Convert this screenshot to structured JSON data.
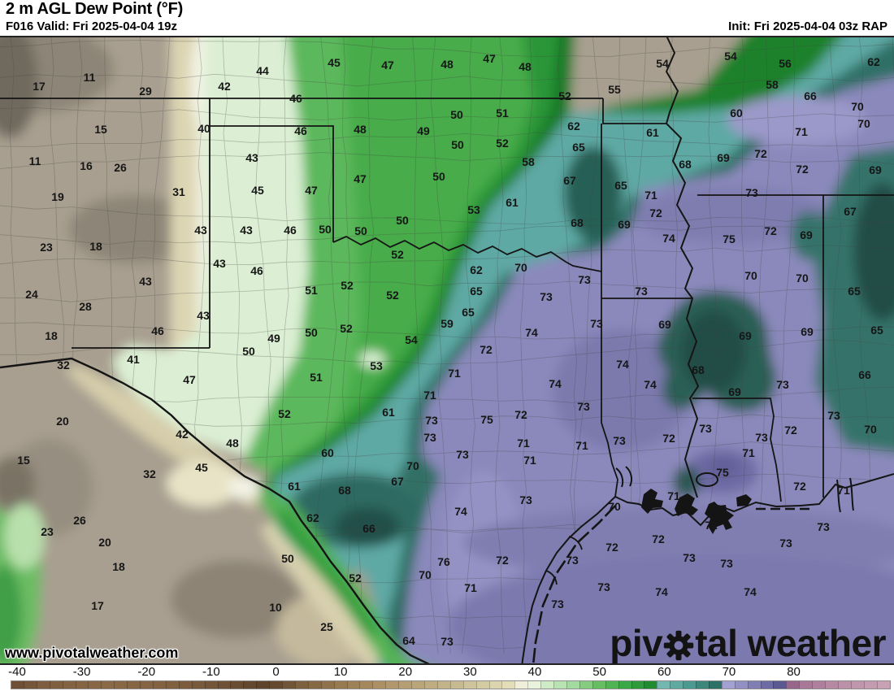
{
  "header": {
    "title": "2 m AGL Dew Point (°F)",
    "valid": "F016 Valid: Fri 2025-04-04 19z",
    "init": "Init: Fri 2025-04-04 03z RAP"
  },
  "watermark": "www.pivotalweather.com",
  "logo": {
    "pre": "piv",
    "post": "tal weather"
  },
  "colors": {
    "tan-base": "#a89f90",
    "tan-dark": "#8d8577",
    "tan-darker": "#70695d",
    "cream": "#ddd6b4",
    "white-band": "#f1f2e2",
    "green-pale": "#dcefd4",
    "green-mid": "#5cb85c",
    "green-bright": "#46ac49",
    "green-dark": "#2b9639",
    "green-deep": "#187a27",
    "teal-light": "#5ea9a4",
    "teal-mid": "#2e6f66",
    "teal-dark": "#255f55",
    "teal-deep": "#224e46",
    "purple-base": "#8b89bc",
    "purple-light": "#9b99c9",
    "purple-dark": "#7b79ad",
    "purple-deep": "#6e6ba4",
    "line-black": "#151515",
    "county-gray": "#464646",
    "label-dark": "#161616"
  },
  "colorbar": {
    "min": -41,
    "max": 95,
    "cell": 2,
    "ticks": [
      -40,
      -30,
      -20,
      -10,
      0,
      10,
      20,
      30,
      40,
      50,
      60,
      70,
      80
    ],
    "stops": [
      [
        -41,
        "#6b4c33"
      ],
      [
        -36,
        "#7e5d40"
      ],
      [
        -26,
        "#8a6947"
      ],
      [
        -16,
        "#80603f"
      ],
      [
        -8,
        "#6e5136"
      ],
      [
        -2,
        "#5e442d"
      ],
      [
        0,
        "#654a30"
      ],
      [
        4,
        "#7c6040"
      ],
      [
        10,
        "#987a50"
      ],
      [
        16,
        "#ac9064"
      ],
      [
        22,
        "#baa579"
      ],
      [
        28,
        "#c8ba90"
      ],
      [
        32,
        "#d4cba3"
      ],
      [
        36,
        "#e3ddba"
      ],
      [
        38,
        "#efeed8"
      ],
      [
        40,
        "#e9f2dc"
      ],
      [
        42,
        "#cfeac6"
      ],
      [
        46,
        "#a3daa0"
      ],
      [
        50,
        "#66bd62"
      ],
      [
        54,
        "#3aa846"
      ],
      [
        58,
        "#218b31"
      ],
      [
        60,
        "#127421"
      ],
      [
        60,
        "#73b7b0"
      ],
      [
        64,
        "#4b9a92"
      ],
      [
        68,
        "#2d7166"
      ],
      [
        70,
        "#1b524a"
      ],
      [
        70,
        "#a3a1d2"
      ],
      [
        73,
        "#8987bb"
      ],
      [
        76,
        "#6d6ba3"
      ],
      [
        79,
        "#524f8a"
      ],
      [
        80,
        "#454279"
      ],
      [
        80,
        "#97678b"
      ],
      [
        82,
        "#a87897"
      ],
      [
        88,
        "#bb91a8"
      ],
      [
        95,
        "#cba4b6"
      ]
    ]
  },
  "map_values": [
    [
      48,
      106,
      "17"
    ],
    [
      110,
      95,
      "11"
    ],
    [
      179,
      112,
      "29"
    ],
    [
      124,
      159,
      "15"
    ],
    [
      43,
      198,
      "11"
    ],
    [
      106,
      204,
      "16"
    ],
    [
      148,
      206,
      "26"
    ],
    [
      71,
      242,
      "19"
    ],
    [
      220,
      236,
      "31"
    ],
    [
      57,
      304,
      "23"
    ],
    [
      118,
      303,
      "18"
    ],
    [
      39,
      362,
      "24"
    ],
    [
      105,
      377,
      "28"
    ],
    [
      63,
      413,
      "18"
    ],
    [
      78,
      449,
      "32"
    ],
    [
      77,
      518,
      "20"
    ],
    [
      29,
      566,
      "15"
    ],
    [
      184,
      583,
      "32"
    ],
    [
      98,
      640,
      "26"
    ],
    [
      58,
      654,
      "23"
    ],
    [
      129,
      667,
      "20"
    ],
    [
      146,
      697,
      "18"
    ],
    [
      120,
      745,
      "17"
    ],
    [
      339,
      747,
      "10"
    ],
    [
      402,
      771,
      "25"
    ],
    [
      248,
      575,
      "45"
    ],
    [
      354,
      687,
      "50"
    ],
    [
      276,
      106,
      "42"
    ],
    [
      251,
      158,
      "40"
    ],
    [
      247,
      283,
      "43"
    ],
    [
      303,
      283,
      "43"
    ],
    [
      357,
      283,
      "46"
    ],
    [
      270,
      324,
      "43"
    ],
    [
      316,
      333,
      "46"
    ],
    [
      179,
      346,
      "43"
    ],
    [
      250,
      388,
      "43"
    ],
    [
      194,
      407,
      "46"
    ],
    [
      164,
      442,
      "41"
    ],
    [
      233,
      467,
      "47"
    ],
    [
      224,
      534,
      "42"
    ],
    [
      286,
      545,
      "48"
    ],
    [
      310,
      194,
      "43"
    ],
    [
      317,
      234,
      "45"
    ],
    [
      383,
      234,
      "47"
    ],
    [
      364,
      121,
      "46"
    ],
    [
      370,
      161,
      "46"
    ],
    [
      323,
      87,
      "44"
    ],
    [
      411,
      77,
      "45"
    ],
    [
      477,
      80,
      "47"
    ],
    [
      550,
      79,
      "48"
    ],
    [
      602,
      72,
      "47"
    ],
    [
      646,
      82,
      "48"
    ],
    [
      443,
      159,
      "48"
    ],
    [
      521,
      161,
      "49"
    ],
    [
      562,
      141,
      "50"
    ],
    [
      618,
      139,
      "51"
    ],
    [
      563,
      178,
      "50"
    ],
    [
      618,
      176,
      "52"
    ],
    [
      650,
      199,
      "58"
    ],
    [
      443,
      220,
      "47"
    ],
    [
      540,
      217,
      "50"
    ],
    [
      583,
      258,
      "53"
    ],
    [
      495,
      271,
      "50"
    ],
    [
      400,
      282,
      "50"
    ],
    [
      444,
      284,
      "50"
    ],
    [
      630,
      249,
      "61"
    ],
    [
      337,
      416,
      "49"
    ],
    [
      306,
      432,
      "50"
    ],
    [
      489,
      313,
      "52"
    ],
    [
      383,
      357,
      "51"
    ],
    [
      427,
      351,
      "52"
    ],
    [
      483,
      363,
      "52"
    ],
    [
      383,
      409,
      "50"
    ],
    [
      426,
      404,
      "52"
    ],
    [
      506,
      418,
      "54"
    ],
    [
      463,
      450,
      "53"
    ],
    [
      389,
      464,
      "51"
    ],
    [
      350,
      509,
      "52"
    ],
    [
      478,
      507,
      "61"
    ],
    [
      403,
      557,
      "60"
    ],
    [
      437,
      711,
      "52"
    ],
    [
      503,
      788,
      "64"
    ],
    [
      695,
      118,
      "52"
    ],
    [
      756,
      110,
      "55"
    ],
    [
      815,
      78,
      "54"
    ],
    [
      899,
      69,
      "54"
    ],
    [
      966,
      78,
      "56"
    ],
    [
      950,
      104,
      "58"
    ],
    [
      906,
      139,
      "60"
    ],
    [
      1075,
      76,
      "62"
    ],
    [
      706,
      155,
      "62"
    ],
    [
      803,
      163,
      "61"
    ],
    [
      712,
      181,
      "65"
    ],
    [
      701,
      222,
      "67"
    ],
    [
      764,
      228,
      "65"
    ],
    [
      710,
      274,
      "68"
    ],
    [
      768,
      276,
      "69"
    ],
    [
      843,
      202,
      "68"
    ],
    [
      890,
      194,
      "69"
    ],
    [
      997,
      118,
      "66"
    ],
    [
      1046,
      260,
      "67"
    ],
    [
      586,
      332,
      "62"
    ],
    [
      586,
      358,
      "65"
    ],
    [
      576,
      384,
      "65"
    ],
    [
      550,
      398,
      "59"
    ],
    [
      362,
      598,
      "61"
    ],
    [
      385,
      637,
      "62"
    ],
    [
      424,
      603,
      "68"
    ],
    [
      489,
      592,
      "67"
    ],
    [
      454,
      650,
      "66"
    ],
    [
      508,
      573,
      "70"
    ],
    [
      523,
      707,
      "70"
    ],
    [
      1055,
      131,
      "70"
    ],
    [
      1063,
      152,
      "70"
    ],
    [
      986,
      162,
      "71"
    ],
    [
      936,
      189,
      "72"
    ],
    [
      987,
      208,
      "72"
    ],
    [
      1077,
      209,
      "69"
    ],
    [
      925,
      237,
      "73"
    ],
    [
      801,
      240,
      "71"
    ],
    [
      807,
      262,
      "72"
    ],
    [
      823,
      293,
      "74"
    ],
    [
      897,
      294,
      "75"
    ],
    [
      948,
      284,
      "72"
    ],
    [
      992,
      289,
      "69"
    ],
    [
      719,
      344,
      "73"
    ],
    [
      789,
      358,
      "73"
    ],
    [
      924,
      339,
      "70"
    ],
    [
      987,
      342,
      "70"
    ],
    [
      1051,
      358,
      "65"
    ],
    [
      734,
      398,
      "73"
    ],
    [
      818,
      399,
      "69"
    ],
    [
      917,
      413,
      "69"
    ],
    [
      993,
      408,
      "69"
    ],
    [
      1079,
      406,
      "65"
    ],
    [
      766,
      448,
      "74"
    ],
    [
      859,
      455,
      "68"
    ],
    [
      1064,
      461,
      "66"
    ],
    [
      800,
      473,
      "74"
    ],
    [
      963,
      473,
      "73"
    ],
    [
      904,
      482,
      "69"
    ],
    [
      718,
      500,
      "73"
    ],
    [
      1071,
      528,
      "70"
    ],
    [
      641,
      329,
      "70"
    ],
    [
      672,
      365,
      "73"
    ],
    [
      654,
      409,
      "74"
    ],
    [
      598,
      430,
      "72"
    ],
    [
      559,
      459,
      "71"
    ],
    [
      683,
      472,
      "74"
    ],
    [
      529,
      486,
      "71"
    ],
    [
      531,
      517,
      "73"
    ],
    [
      599,
      516,
      "75"
    ],
    [
      641,
      510,
      "72"
    ],
    [
      569,
      559,
      "73"
    ],
    [
      529,
      538,
      "73"
    ],
    [
      644,
      545,
      "71"
    ],
    [
      652,
      566,
      "71"
    ],
    [
      716,
      548,
      "71"
    ],
    [
      762,
      542,
      "73"
    ],
    [
      823,
      539,
      "72"
    ],
    [
      868,
      527,
      "73"
    ],
    [
      937,
      538,
      "73"
    ],
    [
      973,
      529,
      "72"
    ],
    [
      1026,
      511,
      "73"
    ],
    [
      921,
      557,
      "71"
    ],
    [
      647,
      615,
      "73"
    ],
    [
      567,
      629,
      "74"
    ],
    [
      618,
      689,
      "72"
    ],
    [
      546,
      691,
      "76"
    ],
    [
      579,
      723,
      "71"
    ],
    [
      550,
      789,
      "73"
    ],
    [
      889,
      581,
      "75"
    ],
    [
      984,
      598,
      "72"
    ],
    [
      1038,
      603,
      "71"
    ],
    [
      829,
      610,
      "71"
    ],
    [
      756,
      623,
      "70"
    ],
    [
      875,
      646,
      "72"
    ],
    [
      1013,
      648,
      "73"
    ],
    [
      810,
      663,
      "72"
    ],
    [
      753,
      673,
      "72"
    ],
    [
      967,
      668,
      "73"
    ],
    [
      704,
      689,
      "73"
    ],
    [
      848,
      686,
      "73"
    ],
    [
      894,
      693,
      "73"
    ],
    [
      743,
      722,
      "73"
    ],
    [
      814,
      728,
      "74"
    ],
    [
      923,
      728,
      "74"
    ],
    [
      686,
      743,
      "73"
    ]
  ]
}
